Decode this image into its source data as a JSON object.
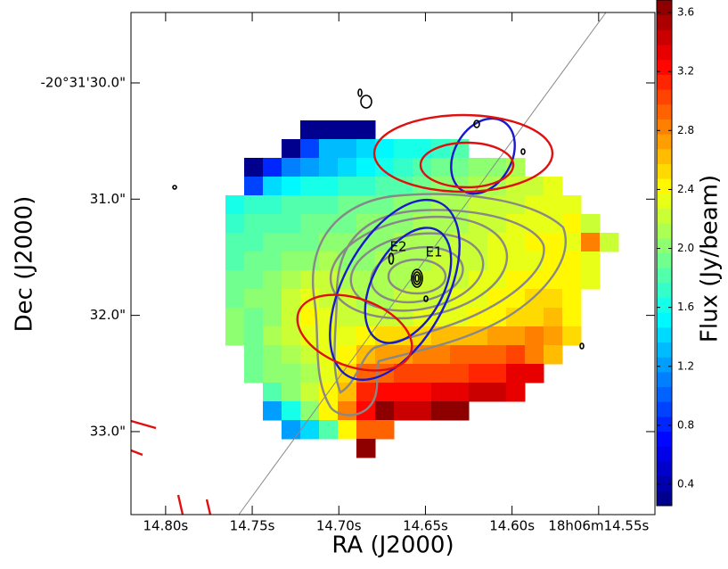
{
  "chart_data": {
    "type": "heatmap",
    "x_label": "RA (J2000)",
    "y_label": "Dec (J2000)",
    "colorbar_label": "Flux (Jy/beam)",
    "colormap": "jet",
    "xlim": [
      14.82,
      14.5175
    ],
    "xticks": [
      {
        "value": 14.8,
        "label": "14.80s"
      },
      {
        "value": 14.75,
        "label": "14.75s"
      },
      {
        "value": 14.7,
        "label": "14.70s"
      },
      {
        "value": 14.65,
        "label": "14.65s"
      },
      {
        "value": 14.6,
        "label": "14.60s"
      },
      {
        "value": 14.55,
        "label": "18h06m14.55s"
      }
    ],
    "ylim": [
      33.714,
      29.394
    ],
    "yticks": [
      {
        "value": 30,
        "label": "-20°31'30.0\""
      },
      {
        "value": 31,
        "label": "31.0\""
      },
      {
        "value": 32,
        "label": "32.0\""
      },
      {
        "value": 33,
        "label": "33.0\""
      }
    ],
    "clim": [
      0.255,
      3.685
    ],
    "cticks": [
      0.4,
      0.8,
      1.2,
      1.6,
      {
        "value": 2,
        "label": "2.0"
      },
      2.4,
      2.8,
      3.2,
      3.6
    ],
    "annotations": [
      "E1",
      "E2"
    ],
    "values": [
      [
        null,
        null,
        null,
        null,
        0.3,
        0.3,
        0.3,
        0.3,
        null,
        null,
        null,
        null,
        null,
        null,
        null,
        null,
        null,
        null,
        null,
        null,
        null
      ],
      [
        null,
        null,
        null,
        0.35,
        0.9,
        1.3,
        1.3,
        1.4,
        1.5,
        1.6,
        1.6,
        1.7,
        1.8,
        null,
        null,
        null,
        null,
        null,
        null,
        null,
        null
      ],
      [
        null,
        0.35,
        0.8,
        1.1,
        1.2,
        1.3,
        1.4,
        1.5,
        1.6,
        1.7,
        1.8,
        1.9,
        1.9,
        2.0,
        2.0,
        2.1,
        null,
        null,
        null,
        null,
        null
      ],
      [
        null,
        0.9,
        1.4,
        1.5,
        1.6,
        1.6,
        1.7,
        1.7,
        1.8,
        1.8,
        1.9,
        2.0,
        2.0,
        2.1,
        2.1,
        2.2,
        2.2,
        2.3,
        null,
        null,
        null
      ],
      [
        1.6,
        1.7,
        1.7,
        1.8,
        1.8,
        1.8,
        1.9,
        1.9,
        1.9,
        2.0,
        2.0,
        2.1,
        2.1,
        2.2,
        2.2,
        2.2,
        2.3,
        2.3,
        2.3,
        null,
        null
      ],
      [
        1.7,
        1.8,
        1.8,
        1.8,
        1.9,
        1.9,
        1.9,
        2.0,
        2.0,
        2.0,
        2.1,
        2.1,
        2.1,
        2.2,
        2.2,
        2.3,
        2.3,
        2.3,
        2.4,
        2.2,
        null
      ],
      [
        1.8,
        1.8,
        1.9,
        1.9,
        1.9,
        2.0,
        2.0,
        2.0,
        2.0,
        2.1,
        2.1,
        2.1,
        2.2,
        2.2,
        2.3,
        2.3,
        2.4,
        2.4,
        2.3,
        2.8,
        2.2
      ],
      [
        1.8,
        1.9,
        1.9,
        2.0,
        2.0,
        2.1,
        2.0,
        2.0,
        2.1,
        2.1,
        2.1,
        2.2,
        2.2,
        2.2,
        2.3,
        2.3,
        2.3,
        2.4,
        2.4,
        2.3,
        null
      ],
      [
        1.9,
        1.9,
        2.0,
        2.1,
        2.2,
        2.2,
        2.1,
        2.1,
        2.1,
        2.1,
        2.2,
        2.2,
        2.2,
        2.3,
        2.3,
        2.4,
        2.4,
        2.4,
        2.4,
        2.3,
        null
      ],
      [
        1.9,
        2.0,
        2.0,
        2.2,
        2.3,
        2.2,
        2.2,
        2.1,
        2.1,
        2.2,
        2.2,
        2.2,
        2.3,
        2.3,
        2.4,
        2.4,
        2.5,
        2.5,
        2.4,
        null,
        null
      ],
      [
        2.0,
        1.9,
        2.0,
        2.2,
        2.4,
        2.3,
        2.2,
        2.2,
        2.2,
        2.2,
        2.3,
        2.3,
        2.3,
        2.4,
        2.4,
        2.5,
        2.5,
        2.6,
        2.4,
        null,
        null
      ],
      [
        2.0,
        1.9,
        2.1,
        2.2,
        2.3,
        2.3,
        2.3,
        2.4,
        2.5,
        2.5,
        2.5,
        2.6,
        2.6,
        2.6,
        2.7,
        2.7,
        2.8,
        2.7,
        2.5,
        null,
        null
      ],
      [
        null,
        1.9,
        2.0,
        2.1,
        2.2,
        2.3,
        2.4,
        2.6,
        2.7,
        2.7,
        2.8,
        2.8,
        2.9,
        2.9,
        2.9,
        3.0,
        2.8,
        2.6,
        null,
        null,
        null
      ],
      [
        null,
        1.9,
        2.0,
        2.0,
        2.1,
        2.3,
        2.5,
        2.9,
        2.9,
        3.0,
        3.0,
        3.0,
        3.0,
        3.1,
        3.1,
        3.3,
        3.3,
        null,
        null,
        null,
        null
      ],
      [
        null,
        null,
        1.8,
        2.0,
        2.2,
        2.4,
        2.6,
        3.1,
        3.2,
        3.2,
        3.2,
        3.3,
        3.3,
        3.4,
        3.4,
        3.3,
        null,
        null,
        null,
        null,
        null
      ],
      [
        null,
        null,
        1.2,
        1.6,
        2.0,
        2.4,
        2.8,
        3.2,
        3.6,
        3.4,
        3.4,
        3.7,
        3.7,
        null,
        null,
        null,
        null,
        null,
        null,
        null,
        null
      ],
      [
        null,
        null,
        null,
        1.2,
        1.4,
        1.8,
        2.4,
        2.9,
        2.9,
        null,
        null,
        null,
        null,
        null,
        null,
        null,
        null,
        null,
        null,
        null,
        null
      ],
      [
        null,
        null,
        null,
        null,
        null,
        null,
        null,
        3.7,
        null,
        null,
        null,
        null,
        null,
        null,
        null,
        null,
        null,
        null,
        null,
        null,
        null
      ]
    ]
  }
}
